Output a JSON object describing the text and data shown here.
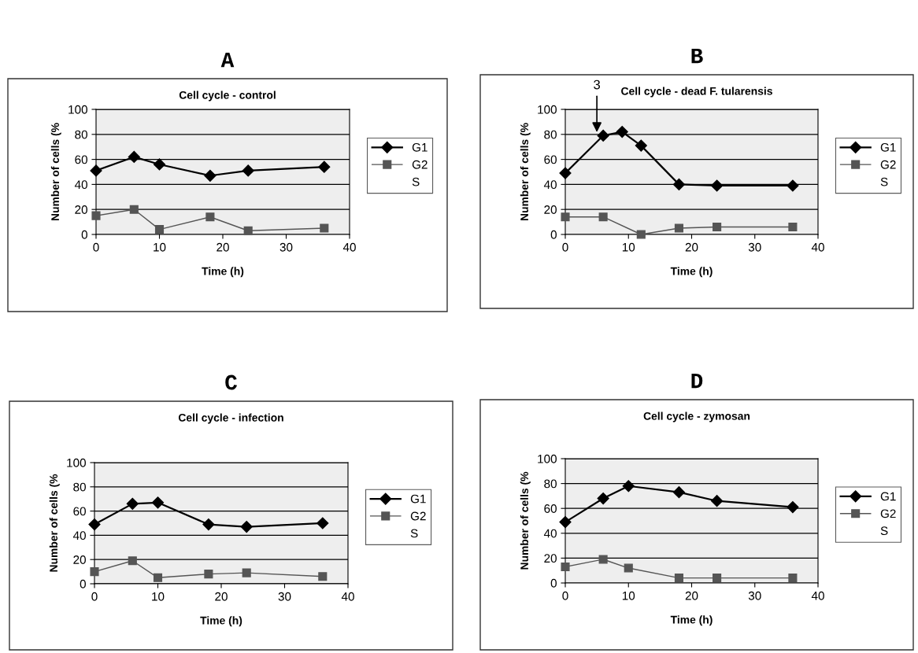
{
  "chart_data": [
    {
      "type": "line",
      "title": "A",
      "subtitle": "Cell cycle - control",
      "xlabel": "Time (h)",
      "ylabel": "Number of cells (%",
      "x": [
        0,
        6,
        10,
        18,
        24,
        36
      ],
      "xlim": [
        0,
        40
      ],
      "xticks": [
        0,
        10,
        20,
        30,
        40
      ],
      "ylim": [
        0,
        100
      ],
      "yticks": [
        0,
        20,
        40,
        60,
        80,
        100
      ],
      "grid": "y",
      "legend": "right",
      "series": [
        {
          "name": "G1",
          "color": "#000000",
          "marker": "diamond",
          "values": [
            51,
            62,
            56,
            47,
            51,
            54
          ]
        },
        {
          "name": "G2",
          "color": "#555555",
          "marker": "square",
          "values": [
            15,
            20,
            4,
            14,
            3,
            5
          ]
        },
        {
          "name": "S",
          "values": [
            null,
            null,
            null,
            null,
            null,
            null
          ]
        }
      ]
    },
    {
      "type": "line",
      "title": "B",
      "subtitle": "Cell cycle - dead F. tularensis",
      "xlabel": "Time (h)",
      "ylabel": "Number of cells (%",
      "x": [
        0,
        6,
        9,
        12,
        18,
        24,
        36
      ],
      "xlim": [
        0,
        40
      ],
      "xticks": [
        0,
        10,
        20,
        30,
        40
      ],
      "ylim": [
        0,
        100
      ],
      "yticks": [
        0,
        20,
        40,
        60,
        80,
        100
      ],
      "grid": "y",
      "legend": "right",
      "annotations": [
        {
          "text": "3",
          "x": 5,
          "y": 80
        }
      ],
      "series": [
        {
          "name": "G1",
          "color": "#000000",
          "marker": "diamond",
          "values": [
            49,
            79,
            82,
            71,
            40,
            39,
            39
          ]
        },
        {
          "name": "G2",
          "color": "#555555",
          "marker": "square",
          "x": [
            0,
            6,
            12,
            18,
            24,
            36
          ],
          "values": [
            14,
            14,
            0,
            5,
            6,
            6
          ]
        },
        {
          "name": "S",
          "values": [
            null,
            null,
            null,
            null,
            null,
            null,
            null
          ]
        }
      ]
    },
    {
      "type": "line",
      "title": "C",
      "subtitle": "Cell cycle - infection",
      "xlabel": "Time (h)",
      "ylabel": "Number of cells (%",
      "x": [
        0,
        6,
        10,
        18,
        24,
        36
      ],
      "xlim": [
        0,
        40
      ],
      "xticks": [
        0,
        10,
        20,
        30,
        40
      ],
      "ylim": [
        0,
        100
      ],
      "yticks": [
        0,
        20,
        40,
        60,
        80,
        100
      ],
      "grid": "y",
      "legend": "right",
      "series": [
        {
          "name": "G1",
          "color": "#000000",
          "marker": "diamond",
          "values": [
            49,
            66,
            67,
            49,
            47,
            50
          ]
        },
        {
          "name": "G2",
          "color": "#555555",
          "marker": "square",
          "values": [
            10,
            19,
            5,
            8,
            9,
            6
          ]
        },
        {
          "name": "S",
          "values": [
            null,
            null,
            null,
            null,
            null,
            null
          ]
        }
      ]
    },
    {
      "type": "line",
      "title": "D",
      "subtitle": "Cell cycle - zymosan",
      "xlabel": "Time (h)",
      "ylabel": "Number of cells (%",
      "x": [
        0,
        6,
        10,
        18,
        24,
        36
      ],
      "xlim": [
        0,
        40
      ],
      "xticks": [
        0,
        10,
        20,
        30,
        40
      ],
      "ylim": [
        0,
        100
      ],
      "yticks": [
        0,
        20,
        40,
        60,
        80,
        100
      ],
      "grid": "y",
      "legend": "right",
      "series": [
        {
          "name": "G1",
          "color": "#000000",
          "marker": "diamond",
          "values": [
            49,
            68,
            78,
            73,
            66,
            61
          ]
        },
        {
          "name": "G2",
          "color": "#555555",
          "marker": "square",
          "values": [
            13,
            19,
            12,
            4,
            4,
            4
          ]
        },
        {
          "name": "S",
          "values": [
            null,
            null,
            null,
            null,
            null,
            null
          ]
        }
      ]
    }
  ]
}
